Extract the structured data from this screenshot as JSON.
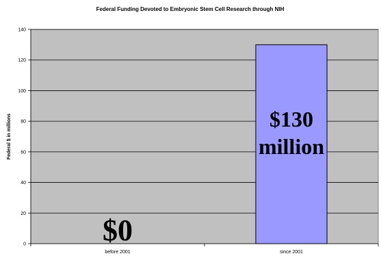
{
  "chart_data": {
    "type": "bar",
    "title": "Federal Funding Devoted to Embryonic Stem Cell Research through NIH",
    "xlabel": "",
    "ylabel": "Federal $ in millions",
    "categories": [
      "before 2001",
      "since 2001"
    ],
    "values": [
      0,
      130
    ],
    "ylim": [
      0,
      140
    ],
    "yticks": [
      0,
      20,
      40,
      60,
      80,
      100,
      120,
      140
    ],
    "grid": true,
    "legend": "none",
    "annotations": [
      {
        "category": "before 2001",
        "lines": [
          "$0"
        ]
      },
      {
        "category": "since 2001",
        "lines": [
          "$130",
          "million"
        ]
      }
    ],
    "colors": {
      "plot_background": "#c0c0c0",
      "bar_fill": "#9999ff",
      "bar_stroke": "#000000",
      "grid": "#000000"
    }
  }
}
